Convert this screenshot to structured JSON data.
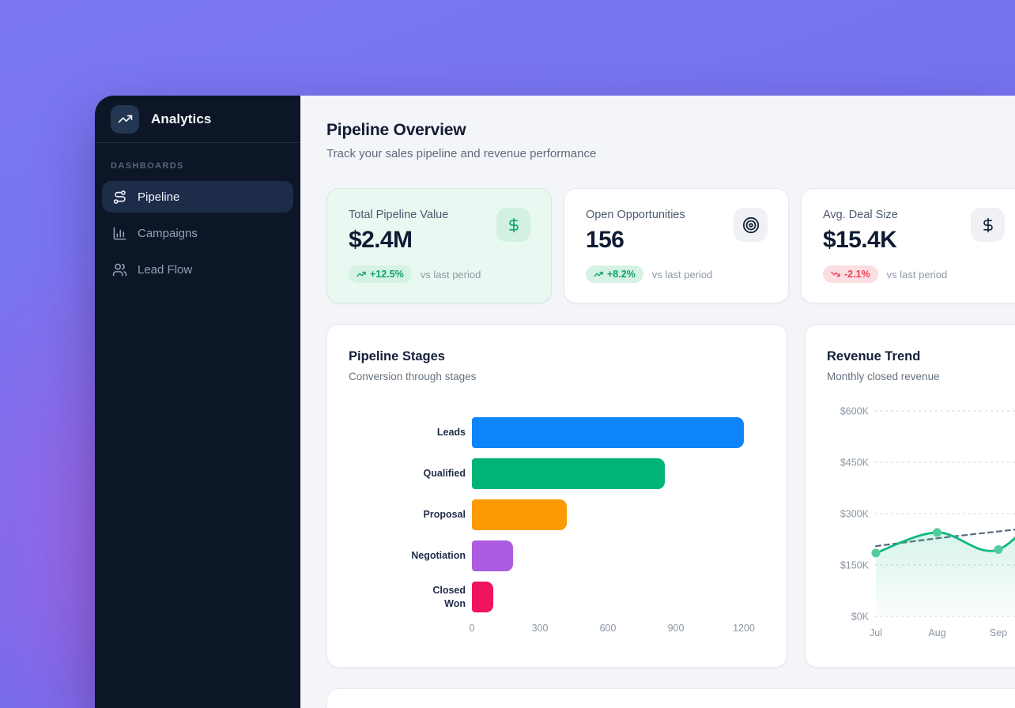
{
  "app": {
    "name": "Analytics"
  },
  "sidebar": {
    "section_label": "DASHBOARDS",
    "items": [
      {
        "label": "Pipeline",
        "icon": "route-icon",
        "active": true
      },
      {
        "label": "Campaigns",
        "icon": "column-chart-icon",
        "active": false
      },
      {
        "label": "Lead Flow",
        "icon": "users-icon",
        "active": false
      }
    ]
  },
  "page": {
    "title": "Pipeline Overview",
    "subtitle": "Track your sales pipeline and revenue performance"
  },
  "stat_cards": [
    {
      "label": "Total Pipeline Value",
      "value": "$2.4M",
      "change": "+12.5%",
      "trend": "up",
      "compare": "vs last period",
      "icon": "dollar-sign-icon",
      "highlighted": true
    },
    {
      "label": "Open Opportunities",
      "value": "156",
      "change": "+8.2%",
      "trend": "up",
      "compare": "vs last period",
      "icon": "target-icon",
      "highlighted": false
    },
    {
      "label": "Avg. Deal Size",
      "value": "$15.4K",
      "change": "-2.1%",
      "trend": "down",
      "compare": "vs last period",
      "icon": "dollar-sign-icon",
      "highlighted": false
    }
  ],
  "colors": {
    "sidebar_bg": "#0c1626",
    "sidebar_active_bg": "#1d2c49",
    "main_bg": "#f4f5f8",
    "highlight_card_bg": "#e9f9f1",
    "badge_up": "#0da169",
    "badge_down": "#ee4257",
    "accent_green": "#10b981"
  },
  "chart_data": [
    {
      "type": "bar",
      "orientation": "horizontal",
      "title": "Pipeline Stages",
      "subtitle": "Conversion through stages",
      "categories": [
        "Leads",
        "Qualified",
        "Proposal",
        "Negotiation",
        "Closed Won"
      ],
      "values": [
        1200,
        850,
        420,
        180,
        95
      ],
      "colors": [
        "#0d85f8",
        "#00b377",
        "#fb9a03",
        "#ad5be0",
        "#f0145f"
      ],
      "xlim": [
        0,
        1200
      ],
      "xticks": [
        0,
        300,
        600,
        900,
        1200
      ],
      "grid": false
    },
    {
      "type": "line",
      "title": "Revenue Trend",
      "subtitle": "Monthly closed revenue",
      "x": [
        "Jul",
        "Aug",
        "Sep"
      ],
      "series": [
        {
          "name": "revenue",
          "style": "solid",
          "color": "#10b981",
          "area": true,
          "values": [
            185,
            245,
            195
          ]
        },
        {
          "name": "trend",
          "style": "dashed",
          "color": "#5d6b7d",
          "area": false,
          "values": [
            205,
            228,
            248
          ]
        }
      ],
      "ylim": [
        0,
        600
      ],
      "yticks": [
        "$600K",
        "$450K",
        "$300K",
        "$150K",
        "$0K"
      ],
      "unit": "$K",
      "grid": "dashed-horizontal",
      "note": "chart continues past right edge of viewport"
    }
  ]
}
